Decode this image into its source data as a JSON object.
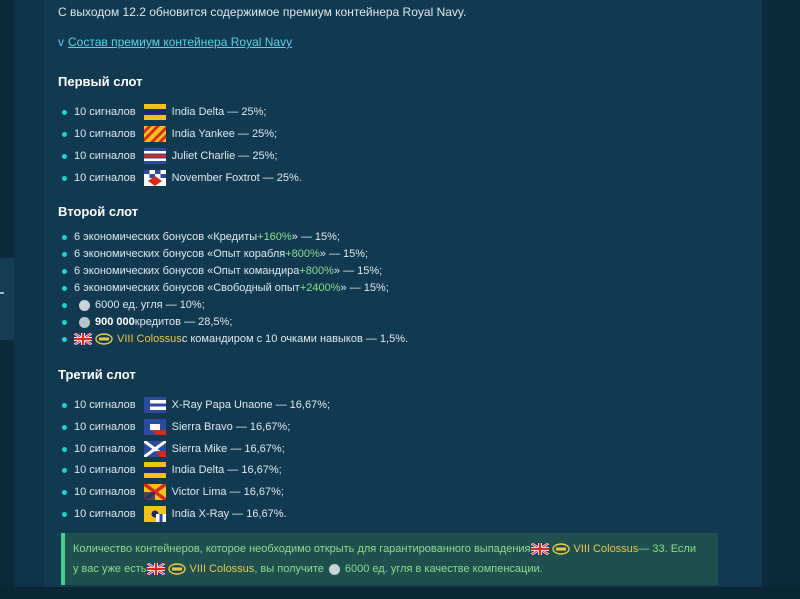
{
  "intro": "С выходом 12.2 обновится содержимое премиум контейнера Royal Navy.",
  "spoiler": {
    "chevron": "v",
    "label": "Состав премиум контейнера Royal Navy"
  },
  "slot1": {
    "title": "Первый слот",
    "items": [
      {
        "count": "10 сигналов",
        "name": "India Delta — 25%;"
      },
      {
        "count": "10 сигналов",
        "name": "India Yankee — 25%;"
      },
      {
        "count": "10 сигналов",
        "name": "Juliet Charlie — 25%;"
      },
      {
        "count": "10 сигналов",
        "name": "November Foxtrot — 25%."
      }
    ]
  },
  "slot2": {
    "title": "Второй слот",
    "items": [
      {
        "pre": "6 экономических бонусов «Кредиты ",
        "bonus": "+160%",
        "post": "» — 15%;"
      },
      {
        "pre": "6 экономических бонусов «Опыт корабля ",
        "bonus": "+800%",
        "post": "» — 15%;"
      },
      {
        "pre": "6 экономических бонусов «Опыт командира ",
        "bonus": "+800%",
        "post": "» — 15%;"
      },
      {
        "pre": "6 экономических бонусов «Свободный опыт ",
        "bonus": "+2400%",
        "post": "» — 15%;"
      }
    ],
    "coal": "6000 ед. угля — 10%;",
    "credits_amount": "900 000",
    "credits_rest": " кредитов — 28,5%;",
    "ship_name": "VIII Colossus",
    "ship_rest": " с командиром с 10 очками навыков — 1,5%."
  },
  "slot3": {
    "title": "Третий слот",
    "items": [
      {
        "count": "10 сигналов",
        "name": "X-Ray Papa Unaone — 16,67%;"
      },
      {
        "count": "10 сигналов",
        "name": "Sierra Bravo — 16,67%;"
      },
      {
        "count": "10 сигналов",
        "name": "Sierra Mike — 16,67%;"
      },
      {
        "count": "10 сигналов",
        "name": "India Delta — 16,67%;"
      },
      {
        "count": "10 сигналов",
        "name": "Victor Lima — 16,67%;"
      },
      {
        "count": "10 сигналов",
        "name": "India X-Ray — 16,67%."
      }
    ]
  },
  "note": {
    "line1_pre": "Количество контейнеров, которое необходимо открыть для гарантированного выпадения ",
    "ship_name": "VIII Colossus",
    "line1_post": " — 33. Если",
    "line2_pre": "у вас уже есть ",
    "line2_mid": ", вы получите ",
    "line2_post": "6000 ед. угля в качестве компенсации."
  },
  "colors": {
    "accent": "#1fd3d6",
    "bonus": "#8edc8a",
    "ship": "#e8c84a",
    "note_bg": "#1f4f4e",
    "note_border": "#3fd28b"
  }
}
